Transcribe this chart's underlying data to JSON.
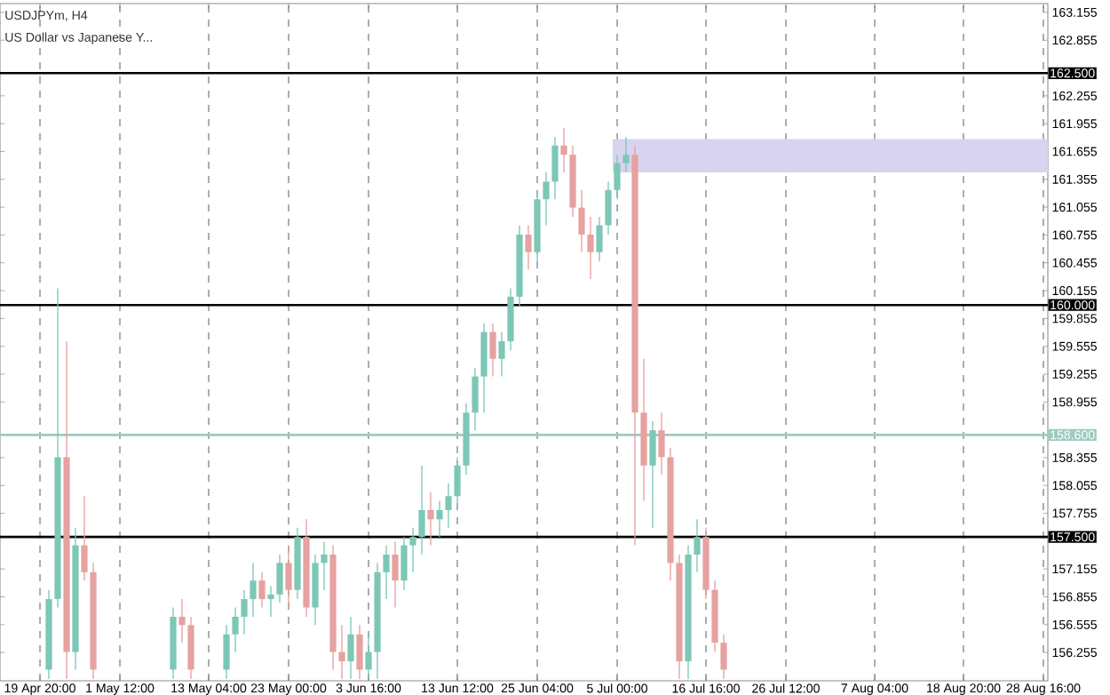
{
  "chart_data": {
    "type": "candlestick",
    "title": "USDJPYm, H4",
    "subtitle": "US Dollar vs Japanese Y...",
    "categories": [
      null,
      null,
      null,
      null,
      "19 Apr 20:00",
      null,
      null,
      null,
      null,
      null,
      null,
      null,
      null,
      "1 May 12:00",
      null,
      null,
      null,
      null,
      null,
      null,
      null,
      null,
      null,
      "13 May 04:00",
      null,
      null,
      null,
      null,
      null,
      null,
      null,
      null,
      "23 May 00:00",
      null,
      null,
      null,
      null,
      null,
      null,
      null,
      null,
      "3 Jun 16:00",
      null,
      null,
      null,
      null,
      null,
      null,
      null,
      null,
      null,
      "13 Jun 12:00",
      null,
      null,
      null,
      null,
      null,
      null,
      null,
      null,
      "25 Jun 04:00",
      null,
      null,
      null,
      null,
      null,
      null,
      null,
      null,
      "5 Jul 00:00",
      null,
      null,
      null,
      null,
      null,
      null,
      null,
      null,
      null,
      "16 Jul 16:00",
      null,
      null,
      null,
      null,
      null,
      null,
      null,
      null,
      "26 Jul 12:00",
      null,
      null,
      null,
      null,
      null,
      null,
      null,
      null,
      null,
      "7 Aug 04:00",
      null,
      null,
      null,
      null,
      null,
      null,
      null,
      null,
      null,
      "18 Aug 20:00",
      null,
      null,
      null,
      null,
      null,
      null,
      null,
      null,
      "28 Aug 16:00"
    ],
    "ohlc": [
      null,
      null,
      null,
      null,
      null,
      [
        156.07,
        156.93,
        155.97,
        156.83
      ],
      [
        156.83,
        160.18,
        156.74,
        158.36
      ],
      [
        158.36,
        159.61,
        155.97,
        156.26
      ],
      [
        156.26,
        157.6,
        156.07,
        157.41
      ],
      [
        157.41,
        157.94,
        157.03,
        157.12
      ],
      [
        157.12,
        157.22,
        155.97,
        156.07
      ],
      null,
      null,
      null,
      null,
      null,
      null,
      null,
      null,
      [
        156.07,
        156.74,
        155.97,
        156.64
      ],
      [
        156.64,
        156.83,
        156.36,
        156.55
      ],
      [
        156.55,
        156.64,
        155.97,
        156.07
      ],
      null,
      null,
      null,
      [
        156.07,
        156.55,
        155.97,
        156.45
      ],
      [
        156.45,
        156.74,
        156.26,
        156.64
      ],
      [
        156.64,
        156.93,
        156.45,
        156.83
      ],
      [
        156.83,
        157.22,
        156.64,
        157.03
      ],
      [
        157.03,
        157.12,
        156.74,
        156.83
      ],
      [
        156.83,
        156.97,
        156.64,
        156.88
      ],
      [
        156.88,
        157.31,
        156.79,
        157.22
      ],
      [
        157.22,
        157.41,
        156.74,
        156.93
      ],
      [
        156.93,
        157.6,
        156.83,
        157.5
      ],
      [
        157.5,
        157.69,
        156.64,
        156.74
      ],
      [
        156.74,
        157.31,
        156.55,
        157.22
      ],
      [
        157.22,
        157.45,
        156.93,
        157.31
      ],
      [
        157.31,
        157.41,
        156.07,
        156.26
      ],
      [
        156.26,
        156.55,
        155.97,
        156.16
      ],
      [
        156.16,
        156.64,
        155.97,
        156.45
      ],
      [
        156.45,
        156.55,
        155.97,
        156.07
      ],
      [
        156.07,
        156.45,
        155.97,
        156.26
      ],
      [
        156.26,
        157.22,
        155.97,
        157.12
      ],
      [
        157.12,
        157.41,
        156.83,
        157.31
      ],
      [
        157.31,
        157.45,
        156.74,
        157.03
      ],
      [
        157.03,
        157.5,
        156.93,
        157.41
      ],
      [
        157.41,
        157.6,
        157.12,
        157.5
      ],
      [
        157.5,
        158.27,
        157.31,
        157.79
      ],
      [
        157.79,
        157.98,
        157.41,
        157.69
      ],
      [
        157.69,
        157.89,
        157.5,
        157.79
      ],
      [
        157.79,
        158.08,
        157.6,
        157.94
      ],
      [
        157.94,
        158.36,
        157.79,
        158.27
      ],
      [
        158.27,
        158.94,
        158.17,
        158.84
      ],
      [
        158.84,
        159.32,
        158.65,
        159.23
      ],
      [
        159.23,
        159.8,
        158.84,
        159.71
      ],
      [
        159.71,
        159.8,
        159.23,
        159.42
      ],
      [
        159.42,
        159.71,
        159.23,
        159.61
      ],
      [
        159.61,
        160.18,
        159.51,
        160.09
      ],
      [
        160.09,
        160.86,
        159.99,
        160.76
      ],
      [
        160.76,
        160.86,
        160.38,
        160.57
      ],
      [
        160.57,
        161.24,
        160.47,
        161.14
      ],
      [
        161.14,
        161.43,
        160.86,
        161.33
      ],
      [
        161.33,
        161.81,
        161.14,
        161.72
      ],
      [
        161.72,
        161.91,
        161.43,
        161.62
      ],
      [
        161.62,
        161.72,
        160.95,
        161.05
      ],
      [
        161.05,
        161.24,
        160.57,
        160.76
      ],
      [
        160.76,
        160.95,
        160.28,
        160.57
      ],
      [
        160.57,
        160.95,
        160.47,
        160.86
      ],
      [
        160.86,
        161.33,
        160.76,
        161.24
      ],
      [
        161.24,
        161.62,
        161.14,
        161.53
      ],
      [
        161.53,
        161.81,
        161.43,
        161.62
      ],
      [
        161.62,
        161.72,
        157.41,
        158.84
      ],
      [
        158.84,
        159.42,
        157.89,
        158.27
      ],
      [
        158.27,
        158.75,
        157.6,
        158.65
      ],
      [
        158.65,
        158.84,
        158.17,
        158.36
      ],
      [
        158.36,
        158.46,
        157.03,
        157.22
      ],
      [
        157.22,
        157.31,
        155.97,
        156.16
      ],
      [
        156.16,
        157.41,
        155.97,
        157.31
      ],
      [
        157.31,
        157.69,
        157.12,
        157.5
      ],
      [
        157.5,
        157.6,
        156.83,
        156.93
      ],
      [
        156.93,
        157.03,
        156.26,
        156.36
      ],
      [
        156.36,
        156.45,
        155.97,
        156.07
      ],
      null,
      null,
      null,
      null,
      null,
      null,
      null,
      null,
      null,
      null,
      null,
      null,
      null,
      null,
      null,
      null,
      null,
      null,
      null,
      null,
      null,
      null,
      null,
      null,
      null,
      null,
      null,
      null,
      null,
      null,
      null,
      null,
      null,
      null,
      null,
      null
    ],
    "colors": [
      null,
      null,
      null,
      null,
      null,
      "#7cc7b6",
      "#7cc7b6",
      "#e6a1a1",
      "#7cc7b6",
      "#e6a1a1",
      "#e6a1a1",
      null,
      null,
      null,
      null,
      null,
      null,
      null,
      null,
      "#7cc7b6",
      "#e6a1a1",
      "#e6a1a1",
      null,
      null,
      null,
      "#7cc7b6",
      "#7cc7b6",
      "#7cc7b6",
      "#7cc7b6",
      "#e6a1a1",
      "#7cc7b6",
      "#7cc7b6",
      "#e6a1a1",
      "#7cc7b6",
      "#e6a1a1",
      "#7cc7b6",
      "#7cc7b6",
      "#e6a1a1",
      "#e6a1a1",
      "#7cc7b6",
      "#e6a1a1",
      "#7cc7b6",
      "#7cc7b6",
      "#7cc7b6",
      "#e6a1a1",
      "#7cc7b6",
      "#7cc7b6",
      "#7cc7b6",
      "#e6a1a1",
      "#7cc7b6",
      "#7cc7b6",
      "#7cc7b6",
      "#7cc7b6",
      "#7cc7b6",
      "#7cc7b6",
      "#e6a1a1",
      "#7cc7b6",
      "#7cc7b6",
      "#7cc7b6",
      "#e6a1a1",
      "#7cc7b6",
      "#7cc7b6",
      "#7cc7b6",
      "#e6a1a1",
      "#e6a1a1",
      "#e6a1a1",
      "#e6a1a1",
      "#7cc7b6",
      "#7cc7b6",
      "#7cc7b6",
      "#7cc7b6",
      "#e6a1a1",
      "#e6a1a1",
      "#7cc7b6",
      "#e6a1a1",
      "#e6a1a1",
      "#e6a1a1",
      "#7cc7b6",
      "#7cc7b6",
      "#e6a1a1",
      "#e6a1a1",
      "#e6a1a1",
      null,
      null,
      null,
      null,
      null,
      null,
      null,
      null,
      null,
      null,
      null,
      null,
      null,
      null,
      null,
      null,
      null,
      null,
      null,
      null,
      null,
      null,
      null,
      null,
      null,
      null,
      null,
      null,
      null,
      null,
      null,
      null,
      null,
      null,
      null,
      null
    ],
    "ylim": [
      155.95,
      163.25
    ],
    "yticks": [
      163.155,
      162.855,
      162.255,
      161.955,
      161.655,
      161.355,
      161.055,
      160.755,
      160.455,
      160.155,
      159.855,
      159.555,
      159.255,
      158.955,
      158.355,
      158.055,
      157.755,
      157.155,
      156.855,
      156.555,
      156.255
    ],
    "ref_lines": [
      {
        "axis": "y",
        "value": 162.5,
        "label": "162.500",
        "color": "#000000"
      },
      {
        "axis": "y",
        "value": 160,
        "label": "160.000",
        "color": "#000000"
      },
      {
        "axis": "y",
        "value": 158.6,
        "label": "158.600",
        "color": "#9ccbc0"
      },
      {
        "axis": "y",
        "value": 157.5,
        "label": "157.500",
        "color": "#000000"
      }
    ],
    "bands": [
      {
        "axis": "y",
        "from": 161.43,
        "to": 161.79,
        "color": "#d8d3ef"
      }
    ],
    "grid": "x"
  }
}
